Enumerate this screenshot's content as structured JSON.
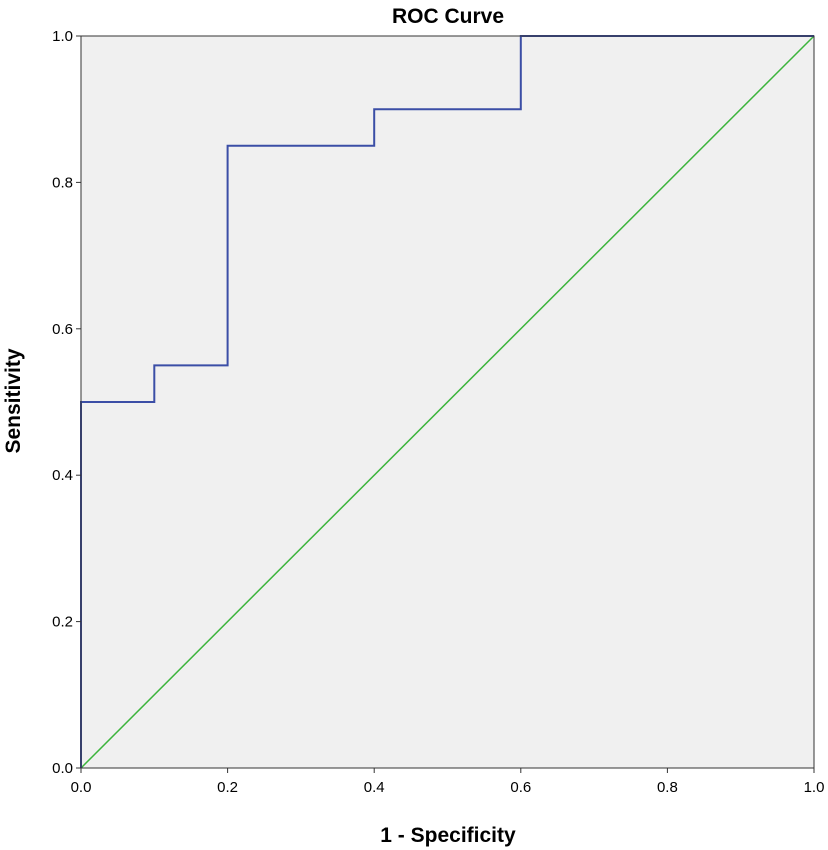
{
  "chart_data": {
    "type": "line",
    "title": "ROC Curve",
    "xlabel": "1 - Specificity",
    "ylabel": "Sensitivity",
    "xlim": [
      0.0,
      1.0
    ],
    "ylim": [
      0.0,
      1.0
    ],
    "x_ticks": [
      "0.0",
      "0.2",
      "0.4",
      "0.6",
      "0.8",
      "1.0"
    ],
    "y_ticks": [
      "0.0",
      "0.2",
      "0.4",
      "0.6",
      "0.8",
      "1.0"
    ],
    "grid": false,
    "plot_background": "#f0f0f0",
    "series": [
      {
        "color": "#3b4ea6",
        "step": true,
        "points": [
          [
            0.0,
            0.0
          ],
          [
            0.0,
            0.5
          ],
          [
            0.1,
            0.5
          ],
          [
            0.1,
            0.55
          ],
          [
            0.2,
            0.55
          ],
          [
            0.2,
            0.85
          ],
          [
            0.4,
            0.85
          ],
          [
            0.4,
            0.9
          ],
          [
            0.6,
            0.9
          ],
          [
            0.6,
            1.0
          ],
          [
            1.0,
            1.0
          ]
        ]
      },
      {
        "color": "#3cb43c",
        "points": [
          [
            0.0,
            0.0
          ],
          [
            1.0,
            1.0
          ]
        ]
      }
    ]
  }
}
